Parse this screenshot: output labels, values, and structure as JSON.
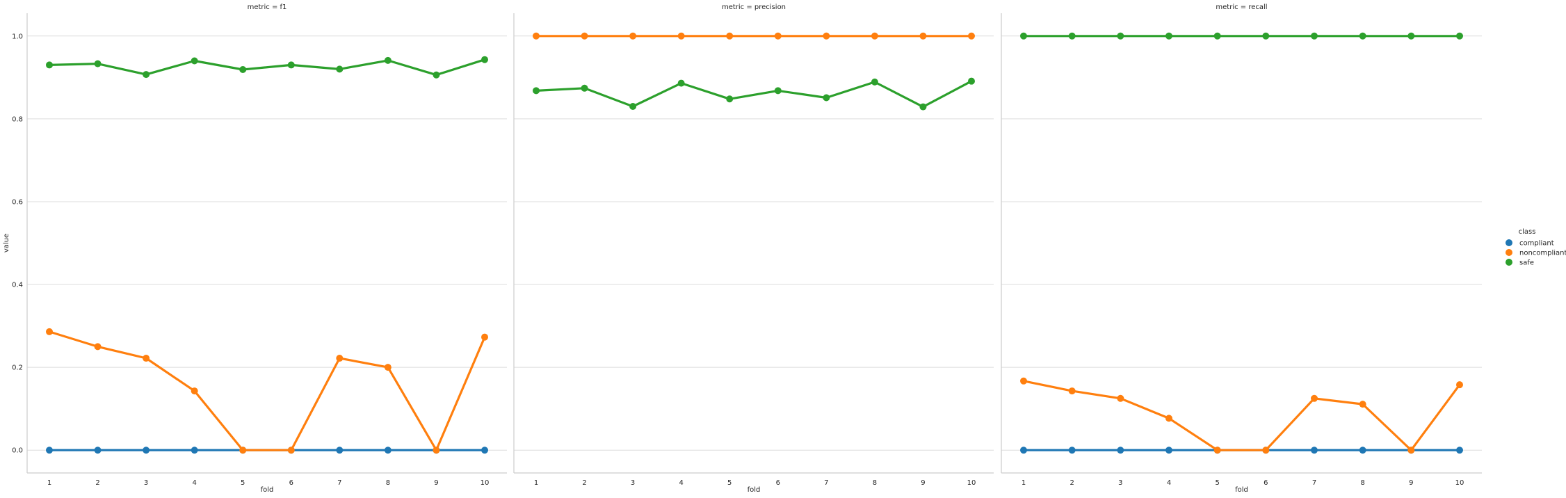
{
  "chart_data": {
    "type": "line",
    "layout": "faceted",
    "facet_label_prefix": "metric = ",
    "xlabel": "fold",
    "ylabel": "value",
    "x": [
      1,
      2,
      3,
      4,
      5,
      6,
      7,
      8,
      9,
      10
    ],
    "ylim": [
      -0.055,
      1.055
    ],
    "yticks": [
      0.0,
      0.2,
      0.4,
      0.6,
      0.8,
      1.0
    ],
    "ytick_labels": [
      "0.0",
      "0.2",
      "0.4",
      "0.6",
      "0.8",
      "1.0"
    ],
    "grid": "horizontal",
    "legend": {
      "title": "class",
      "placement": "right",
      "entries": [
        "compliant",
        "noncompliant",
        "safe"
      ]
    },
    "colors": {
      "compliant": "#1f77b4",
      "noncompliant": "#ff7f0e",
      "safe": "#2ca02c"
    },
    "facets": [
      {
        "metric": "f1",
        "title": "metric = f1",
        "series": [
          {
            "name": "compliant",
            "values": [
              0,
              0,
              0,
              0,
              0,
              0,
              0,
              0,
              0,
              0
            ]
          },
          {
            "name": "noncompliant",
            "values": [
              0.286,
              0.25,
              0.222,
              0.143,
              0,
              0,
              0.222,
              0.2,
              0,
              0.273
            ]
          },
          {
            "name": "safe",
            "values": [
              0.93,
              0.933,
              0.907,
              0.94,
              0.919,
              0.93,
              0.92,
              0.941,
              0.906,
              0.943
            ]
          }
        ]
      },
      {
        "metric": "precision",
        "title": "metric = precision",
        "series": [
          {
            "name": "compliant",
            "values": []
          },
          {
            "name": "noncompliant",
            "values": [
              1,
              1,
              1,
              1,
              1,
              1,
              1,
              1,
              1,
              1
            ]
          },
          {
            "name": "safe",
            "values": [
              0.868,
              0.874,
              0.83,
              0.886,
              0.848,
              0.868,
              0.851,
              0.889,
              0.829,
              0.891
            ]
          }
        ]
      },
      {
        "metric": "recall",
        "title": "metric = recall",
        "series": [
          {
            "name": "compliant",
            "values": [
              0,
              0,
              0,
              0,
              0,
              0,
              0,
              0,
              0,
              0
            ]
          },
          {
            "name": "noncompliant",
            "values": [
              0.167,
              0.143,
              0.125,
              0.077,
              0,
              0,
              0.125,
              0.111,
              0,
              0.158
            ]
          },
          {
            "name": "safe",
            "values": [
              1,
              1,
              1,
              1,
              1,
              1,
              1,
              1,
              1,
              1
            ]
          }
        ]
      }
    ]
  }
}
